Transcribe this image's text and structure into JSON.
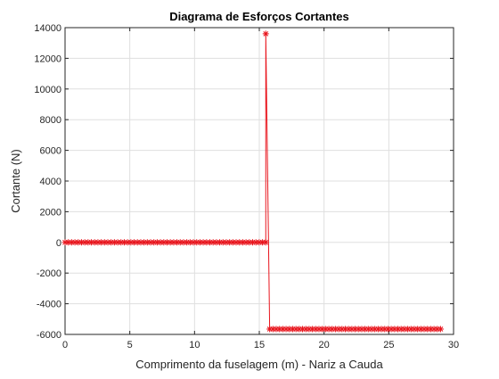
{
  "chart_data": {
    "type": "line",
    "title": "Diagrama de Esforços Cortantes",
    "xlabel": "Comprimento da fuselagem (m) - Nariz a Cauda",
    "ylabel": "Cortante (N)",
    "xlim": [
      0,
      30
    ],
    "ylim": [
      -6000,
      14000
    ],
    "xticks": [
      0,
      5,
      10,
      15,
      20,
      25,
      30
    ],
    "yticks": [
      -6000,
      -4000,
      -2000,
      0,
      2000,
      4000,
      6000,
      8000,
      10000,
      12000,
      14000
    ],
    "xtick_labels": [
      "0",
      "5",
      "10",
      "15",
      "20",
      "25",
      "30"
    ],
    "ytick_labels": [
      "-6000",
      "-4000",
      "-2000",
      "0",
      "2000",
      "4000",
      "6000",
      "8000",
      "10000",
      "12000",
      "14000"
    ],
    "grid": true,
    "series": [
      {
        "color": "#e8141c",
        "marker": "asterisk",
        "segments": [
          {
            "x_start": 0.0,
            "x_end": 15.5,
            "y": 0,
            "points": 62
          },
          {
            "x_start": 15.5,
            "x_end": 15.5,
            "y": 13600,
            "points": 1
          },
          {
            "x_start": 15.8,
            "x_end": 29.0,
            "y": -5650,
            "points": 53
          }
        ]
      }
    ]
  }
}
